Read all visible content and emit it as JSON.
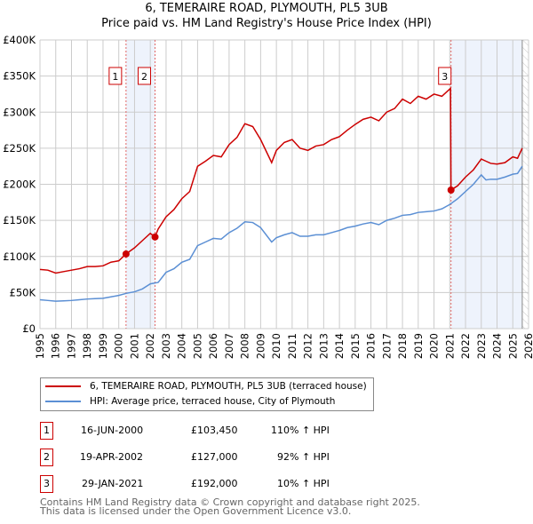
{
  "title": "6, TEMERAIRE ROAD, PLYMOUTH, PL5 3UB",
  "subtitle": "Price paid vs. HM Land Registry's House Price Index (HPI)",
  "chart_data": {
    "type": "line",
    "xlim": [
      1995,
      2026
    ],
    "ylim": [
      0,
      400000
    ],
    "x_ticks": [
      "1995",
      "1996",
      "1997",
      "1998",
      "1999",
      "2000",
      "2001",
      "2002",
      "2003",
      "2004",
      "2005",
      "2006",
      "2007",
      "2008",
      "2009",
      "2010",
      "2011",
      "2012",
      "2013",
      "2014",
      "2015",
      "2016",
      "2017",
      "2018",
      "2019",
      "2020",
      "2021",
      "2022",
      "2023",
      "2024",
      "2025",
      "2026"
    ],
    "y_ticks": [
      {
        "v": 0,
        "label": "£0"
      },
      {
        "v": 50000,
        "label": "£50K"
      },
      {
        "v": 100000,
        "label": "£100K"
      },
      {
        "v": 150000,
        "label": "£150K"
      },
      {
        "v": 200000,
        "label": "£200K"
      },
      {
        "v": 250000,
        "label": "£250K"
      },
      {
        "v": 300000,
        "label": "£300K"
      },
      {
        "v": 350000,
        "label": "£350K"
      },
      {
        "v": 400000,
        "label": "£400K"
      }
    ],
    "grid": true,
    "shaded_ranges": [
      [
        2000.46,
        2002.3
      ],
      [
        2021.08,
        2025.6
      ]
    ],
    "hatched_from": 2025.6,
    "series": [
      {
        "name": "6, TEMERAIRE ROAD, PLYMOUTH, PL5 3UB (terraced house)",
        "color": "#cc0000",
        "x": [
          1995,
          1995.5,
          1996,
          1996.5,
          1997,
          1997.5,
          1998,
          1998.5,
          1999,
          1999.5,
          2000,
          2000.46,
          2001,
          2001.5,
          2002,
          2002.3,
          2002.5,
          2003,
          2003.5,
          2004,
          2004.5,
          2005,
          2005.5,
          2006,
          2006.5,
          2007,
          2007.5,
          2008,
          2008.5,
          2009,
          2009.7,
          2010,
          2010.5,
          2011,
          2011.5,
          2012,
          2012.5,
          2013,
          2013.5,
          2014,
          2014.5,
          2015,
          2015.5,
          2016,
          2016.5,
          2017,
          2017.5,
          2018,
          2018.5,
          2019,
          2019.5,
          2020,
          2020.5,
          2021.05,
          2021.08,
          2021.5,
          2022,
          2022.5,
          2023,
          2023.3,
          2023.6,
          2024,
          2024.5,
          2025,
          2025.3,
          2025.6
        ],
        "y": [
          82000,
          81000,
          77000,
          79000,
          81000,
          83000,
          86000,
          86000,
          87000,
          92000,
          94000,
          103450,
          112000,
          122000,
          132000,
          127000,
          138000,
          155000,
          165000,
          180000,
          190000,
          225000,
          232000,
          240000,
          238000,
          255000,
          265000,
          284000,
          280000,
          262000,
          230000,
          247000,
          258000,
          262000,
          250000,
          247000,
          253000,
          255000,
          262000,
          266000,
          275000,
          283000,
          290000,
          293000,
          288000,
          300000,
          305000,
          318000,
          312000,
          322000,
          318000,
          325000,
          322000,
          333000,
          192000,
          198000,
          210000,
          220000,
          235000,
          232000,
          229000,
          228000,
          230000,
          238000,
          236000,
          250000
        ]
      },
      {
        "name": "HPI: Average price, terraced house, City of Plymouth",
        "color": "#5b8fd4",
        "x": [
          1995,
          1995.5,
          1996,
          1996.5,
          1997,
          1997.5,
          1998,
          1998.5,
          1999,
          1999.5,
          2000,
          2000.5,
          2001,
          2001.5,
          2002,
          2002.5,
          2003,
          2003.5,
          2004,
          2004.5,
          2005,
          2005.5,
          2006,
          2006.5,
          2007,
          2007.5,
          2008,
          2008.5,
          2009,
          2009.7,
          2010,
          2010.5,
          2011,
          2011.5,
          2012,
          2012.5,
          2013,
          2013.5,
          2014,
          2014.5,
          2015,
          2015.5,
          2016,
          2016.5,
          2017,
          2017.5,
          2018,
          2018.5,
          2019,
          2019.5,
          2020,
          2020.5,
          2021,
          2021.5,
          2022,
          2022.5,
          2023,
          2023.3,
          2023.6,
          2024,
          2024.5,
          2025,
          2025.3,
          2025.6
        ],
        "y": [
          40000,
          39000,
          38000,
          38500,
          39000,
          40000,
          41000,
          41500,
          42000,
          44000,
          46000,
          49000,
          51000,
          55000,
          62000,
          64000,
          78000,
          83000,
          92000,
          96000,
          115000,
          120000,
          125000,
          124000,
          133000,
          139000,
          148000,
          147000,
          140000,
          120000,
          126000,
          130000,
          133000,
          128000,
          128000,
          130000,
          130000,
          133000,
          136000,
          140000,
          142000,
          145000,
          147000,
          144000,
          150000,
          153000,
          157000,
          158000,
          161000,
          162000,
          163000,
          166000,
          172000,
          180000,
          190000,
          200000,
          213000,
          206000,
          207000,
          207000,
          210000,
          214000,
          215000,
          225000
        ]
      }
    ],
    "markers": [
      {
        "label": "1",
        "x": 2000.46,
        "y": 103450
      },
      {
        "label": "2",
        "x": 2002.3,
        "y": 127000
      },
      {
        "label": "3",
        "x": 2021.08,
        "y": 192000
      }
    ]
  },
  "legend": [
    {
      "label": "6, TEMERAIRE ROAD, PLYMOUTH, PL5 3UB (terraced house)",
      "color": "#cc0000"
    },
    {
      "label": "HPI: Average price, terraced house, City of Plymouth",
      "color": "#5b8fd4"
    }
  ],
  "transactions": [
    {
      "num": "1",
      "date": "16-JUN-2000",
      "price": "£103,450",
      "hpi": "110% ↑ HPI"
    },
    {
      "num": "2",
      "date": "19-APR-2002",
      "price": "£127,000",
      "hpi": "92% ↑ HPI"
    },
    {
      "num": "3",
      "date": "29-JAN-2021",
      "price": "£192,000",
      "hpi": "10% ↑ HPI"
    }
  ],
  "footer": [
    "Contains HM Land Registry data © Crown copyright and database right 2025.",
    "This data is licensed under the Open Government Licence v3.0."
  ]
}
